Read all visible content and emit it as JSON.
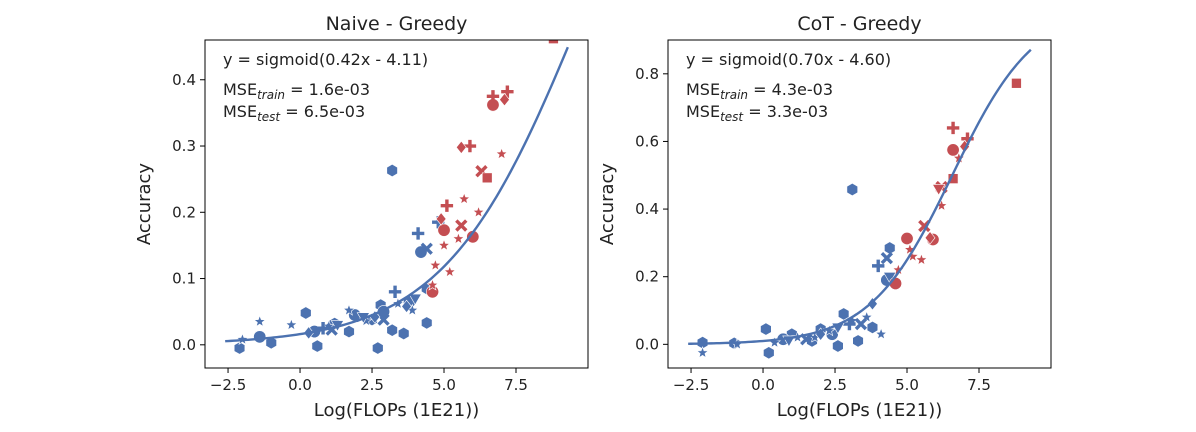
{
  "colors": {
    "train": "#4c72b0",
    "test": "#c44e52",
    "fit": "#4c72b0",
    "axis": "#000000",
    "text": "#222222"
  },
  "chart_data": [
    {
      "type": "scatter",
      "title": "Naive - Greedy",
      "xlabel": "Log(FLOPs (1E21))",
      "ylabel": "Accuracy",
      "xlim": [
        -3.3,
        10.0
      ],
      "ylim": [
        -0.035,
        0.46
      ],
      "xticks": [
        -2.5,
        0.0,
        2.5,
        5.0,
        7.5
      ],
      "xtick_labels": [
        "−2.5",
        "0.0",
        "2.5",
        "5.0",
        "7.5"
      ],
      "yticks": [
        0.0,
        0.1,
        0.2,
        0.3,
        0.4
      ],
      "ytick_labels": [
        "0.0",
        "0.1",
        "0.2",
        "0.3",
        "0.4"
      ],
      "fit": {
        "a": 0.42,
        "b": -4.11,
        "x_range": [
          -2.6,
          9.3
        ]
      },
      "annotation": {
        "equation": "y = sigmoid(0.42x - 4.11)",
        "mse_train_prefix": "MSE",
        "mse_train_sub": "train",
        "mse_train_value": " = 1.6e-03",
        "mse_test_prefix": "MSE",
        "mse_test_sub": "test",
        "mse_test_value": " = 6.5e-03"
      },
      "series": [
        {
          "name": "train",
          "points": [
            {
              "x": -2.1,
              "y": -0.005,
              "m": "hexagon"
            },
            {
              "x": -1.0,
              "y": 0.003,
              "m": "hexagon"
            },
            {
              "x": 0.2,
              "y": 0.048,
              "m": "hexagon"
            },
            {
              "x": 0.6,
              "y": -0.002,
              "m": "hexagon"
            },
            {
              "x": 1.2,
              "y": 0.032,
              "m": "hexagon"
            },
            {
              "x": 1.7,
              "y": 0.02,
              "m": "hexagon"
            },
            {
              "x": 2.0,
              "y": 0.043,
              "m": "hexagon"
            },
            {
              "x": 2.7,
              "y": -0.005,
              "m": "hexagon"
            },
            {
              "x": 2.8,
              "y": 0.06,
              "m": "hexagon"
            },
            {
              "x": 3.2,
              "y": 0.022,
              "m": "hexagon"
            },
            {
              "x": 3.6,
              "y": 0.017,
              "m": "hexagon"
            },
            {
              "x": 3.2,
              "y": 0.263,
              "m": "hexagon"
            },
            {
              "x": 4.4,
              "y": 0.033,
              "m": "hexagon"
            },
            {
              "x": 4.4,
              "y": 0.085,
              "m": "hexagon"
            },
            {
              "x": 2.5,
              "y": 0.038,
              "m": "hexagon"
            },
            {
              "x": -1.4,
              "y": 0.012,
              "m": "circle"
            },
            {
              "x": 0.5,
              "y": 0.02,
              "m": "circle"
            },
            {
              "x": 1.9,
              "y": 0.045,
              "m": "circle"
            },
            {
              "x": 3.8,
              "y": 0.065,
              "m": "circle"
            },
            {
              "x": 4.2,
              "y": 0.14,
              "m": "circle"
            },
            {
              "x": 2.9,
              "y": 0.05,
              "m": "circle"
            },
            {
              "x": -2.0,
              "y": 0.008,
              "m": "star"
            },
            {
              "x": -1.4,
              "y": 0.035,
              "m": "star"
            },
            {
              "x": -0.3,
              "y": 0.03,
              "m": "star"
            },
            {
              "x": 1.0,
              "y": 0.028,
              "m": "star"
            },
            {
              "x": 1.7,
              "y": 0.052,
              "m": "star"
            },
            {
              "x": 3.4,
              "y": 0.062,
              "m": "star"
            },
            {
              "x": 3.9,
              "y": 0.052,
              "m": "star"
            },
            {
              "x": 2.3,
              "y": 0.036,
              "m": "star"
            },
            {
              "x": 0.8,
              "y": 0.025,
              "m": "plus"
            },
            {
              "x": 3.3,
              "y": 0.08,
              "m": "plus"
            },
            {
              "x": 4.1,
              "y": 0.168,
              "m": "plus"
            },
            {
              "x": 4.8,
              "y": 0.185,
              "m": "plus"
            },
            {
              "x": 1.1,
              "y": 0.023,
              "m": "x"
            },
            {
              "x": 4.4,
              "y": 0.145,
              "m": "x"
            },
            {
              "x": 2.9,
              "y": 0.038,
              "m": "x"
            },
            {
              "x": 0.3,
              "y": 0.018,
              "m": "diamond"
            },
            {
              "x": 2.6,
              "y": 0.042,
              "m": "diamond"
            },
            {
              "x": 3.7,
              "y": 0.058,
              "m": "diamond"
            },
            {
              "x": 1.3,
              "y": 0.03,
              "m": "triangle_down"
            },
            {
              "x": 4.0,
              "y": 0.07,
              "m": "triangle_down"
            },
            {
              "x": 2.2,
              "y": 0.042,
              "m": "triangle_down"
            }
          ]
        },
        {
          "name": "test",
          "points": [
            {
              "x": 4.6,
              "y": 0.08,
              "m": "circle"
            },
            {
              "x": 5.0,
              "y": 0.173,
              "m": "circle"
            },
            {
              "x": 6.0,
              "y": 0.163,
              "m": "circle"
            },
            {
              "x": 6.7,
              "y": 0.362,
              "m": "circle"
            },
            {
              "x": 4.6,
              "y": 0.09,
              "m": "star"
            },
            {
              "x": 4.7,
              "y": 0.12,
              "m": "star"
            },
            {
              "x": 5.0,
              "y": 0.15,
              "m": "star"
            },
            {
              "x": 5.7,
              "y": 0.22,
              "m": "star"
            },
            {
              "x": 5.5,
              "y": 0.16,
              "m": "star"
            },
            {
              "x": 6.2,
              "y": 0.2,
              "m": "star"
            },
            {
              "x": 7.0,
              "y": 0.288,
              "m": "star"
            },
            {
              "x": 5.2,
              "y": 0.11,
              "m": "star"
            },
            {
              "x": 5.1,
              "y": 0.21,
              "m": "plus"
            },
            {
              "x": 5.9,
              "y": 0.3,
              "m": "plus"
            },
            {
              "x": 6.7,
              "y": 0.375,
              "m": "plus"
            },
            {
              "x": 7.2,
              "y": 0.382,
              "m": "plus"
            },
            {
              "x": 5.6,
              "y": 0.18,
              "m": "x"
            },
            {
              "x": 6.3,
              "y": 0.262,
              "m": "x"
            },
            {
              "x": 4.9,
              "y": 0.19,
              "m": "diamond"
            },
            {
              "x": 5.6,
              "y": 0.298,
              "m": "diamond"
            },
            {
              "x": 7.1,
              "y": 0.37,
              "m": "diamond"
            },
            {
              "x": 6.5,
              "y": 0.252,
              "m": "square"
            },
            {
              "x": 8.8,
              "y": 0.462,
              "m": "square"
            }
          ]
        }
      ]
    },
    {
      "type": "scatter",
      "title": "CoT - Greedy",
      "xlabel": "Log(FLOPs (1E21))",
      "ylabel": "Accuracy",
      "xlim": [
        -3.3,
        10.0
      ],
      "ylim": [
        -0.07,
        0.9
      ],
      "xticks": [
        -2.5,
        0.0,
        2.5,
        5.0,
        7.5
      ],
      "xtick_labels": [
        "−2.5",
        "0.0",
        "2.5",
        "5.0",
        "7.5"
      ],
      "yticks": [
        0.0,
        0.2,
        0.4,
        0.6,
        0.8
      ],
      "ytick_labels": [
        "0.0",
        "0.2",
        "0.4",
        "0.6",
        "0.8"
      ],
      "fit": {
        "a": 0.7,
        "b": -4.6,
        "x_range": [
          -2.6,
          9.3
        ]
      },
      "annotation": {
        "equation": "y = sigmoid(0.70x - 4.60)",
        "mse_train_prefix": "MSE",
        "mse_train_sub": "train",
        "mse_train_value": " = 4.3e-03",
        "mse_test_prefix": "MSE",
        "mse_test_sub": "test",
        "mse_test_value": " = 3.3e-03"
      },
      "series": [
        {
          "name": "train",
          "points": [
            {
              "x": -2.1,
              "y": 0.005,
              "m": "hexagon"
            },
            {
              "x": -1.0,
              "y": 0.003,
              "m": "hexagon"
            },
            {
              "x": 0.1,
              "y": 0.045,
              "m": "hexagon"
            },
            {
              "x": 0.2,
              "y": -0.025,
              "m": "hexagon"
            },
            {
              "x": 1.0,
              "y": 0.03,
              "m": "hexagon"
            },
            {
              "x": 1.7,
              "y": 0.01,
              "m": "hexagon"
            },
            {
              "x": 2.0,
              "y": 0.045,
              "m": "hexagon"
            },
            {
              "x": 2.6,
              "y": -0.005,
              "m": "hexagon"
            },
            {
              "x": 2.8,
              "y": 0.09,
              "m": "hexagon"
            },
            {
              "x": 3.3,
              "y": 0.01,
              "m": "hexagon"
            },
            {
              "x": 3.1,
              "y": 0.458,
              "m": "hexagon"
            },
            {
              "x": 4.4,
              "y": 0.285,
              "m": "hexagon"
            },
            {
              "x": 3.8,
              "y": 0.05,
              "m": "hexagon"
            },
            {
              "x": 0.7,
              "y": 0.015,
              "m": "circle"
            },
            {
              "x": 2.4,
              "y": 0.03,
              "m": "circle"
            },
            {
              "x": 4.3,
              "y": 0.19,
              "m": "circle"
            },
            {
              "x": -2.1,
              "y": -0.025,
              "m": "star"
            },
            {
              "x": -0.9,
              "y": 0.0,
              "m": "star"
            },
            {
              "x": 0.4,
              "y": 0.005,
              "m": "star"
            },
            {
              "x": 1.2,
              "y": 0.02,
              "m": "star"
            },
            {
              "x": 2.3,
              "y": 0.04,
              "m": "star"
            },
            {
              "x": 3.6,
              "y": 0.08,
              "m": "star"
            },
            {
              "x": 4.1,
              "y": 0.03,
              "m": "star"
            },
            {
              "x": 1.8,
              "y": 0.02,
              "m": "star"
            },
            {
              "x": 3.1,
              "y": 0.07,
              "m": "star"
            },
            {
              "x": 4.0,
              "y": 0.232,
              "m": "plus"
            },
            {
              "x": 3.0,
              "y": 0.06,
              "m": "plus"
            },
            {
              "x": 4.3,
              "y": 0.255,
              "m": "x"
            },
            {
              "x": 1.5,
              "y": 0.015,
              "m": "x"
            },
            {
              "x": 3.4,
              "y": 0.06,
              "m": "x"
            },
            {
              "x": 2.0,
              "y": 0.03,
              "m": "diamond"
            },
            {
              "x": 3.8,
              "y": 0.12,
              "m": "diamond"
            },
            {
              "x": 4.4,
              "y": 0.2,
              "m": "triangle_down"
            },
            {
              "x": 0.9,
              "y": 0.012,
              "m": "triangle_down"
            },
            {
              "x": 2.6,
              "y": 0.05,
              "m": "triangle_down"
            }
          ]
        },
        {
          "name": "test",
          "points": [
            {
              "x": 4.6,
              "y": 0.18,
              "m": "circle"
            },
            {
              "x": 5.0,
              "y": 0.313,
              "m": "circle"
            },
            {
              "x": 5.9,
              "y": 0.31,
              "m": "circle"
            },
            {
              "x": 6.6,
              "y": 0.575,
              "m": "circle"
            },
            {
              "x": 4.7,
              "y": 0.22,
              "m": "star"
            },
            {
              "x": 5.2,
              "y": 0.26,
              "m": "star"
            },
            {
              "x": 5.5,
              "y": 0.25,
              "m": "star"
            },
            {
              "x": 6.2,
              "y": 0.41,
              "m": "star"
            },
            {
              "x": 6.8,
              "y": 0.55,
              "m": "star"
            },
            {
              "x": 5.1,
              "y": 0.28,
              "m": "star"
            },
            {
              "x": 6.6,
              "y": 0.64,
              "m": "plus"
            },
            {
              "x": 7.1,
              "y": 0.608,
              "m": "plus"
            },
            {
              "x": 5.6,
              "y": 0.35,
              "m": "x"
            },
            {
              "x": 6.2,
              "y": 0.465,
              "m": "x"
            },
            {
              "x": 5.8,
              "y": 0.315,
              "m": "diamond"
            },
            {
              "x": 7.0,
              "y": 0.585,
              "m": "diamond"
            },
            {
              "x": 6.1,
              "y": 0.46,
              "m": "triangle_down"
            },
            {
              "x": 6.6,
              "y": 0.49,
              "m": "square"
            },
            {
              "x": 8.8,
              "y": 0.772,
              "m": "square"
            }
          ]
        }
      ]
    }
  ]
}
